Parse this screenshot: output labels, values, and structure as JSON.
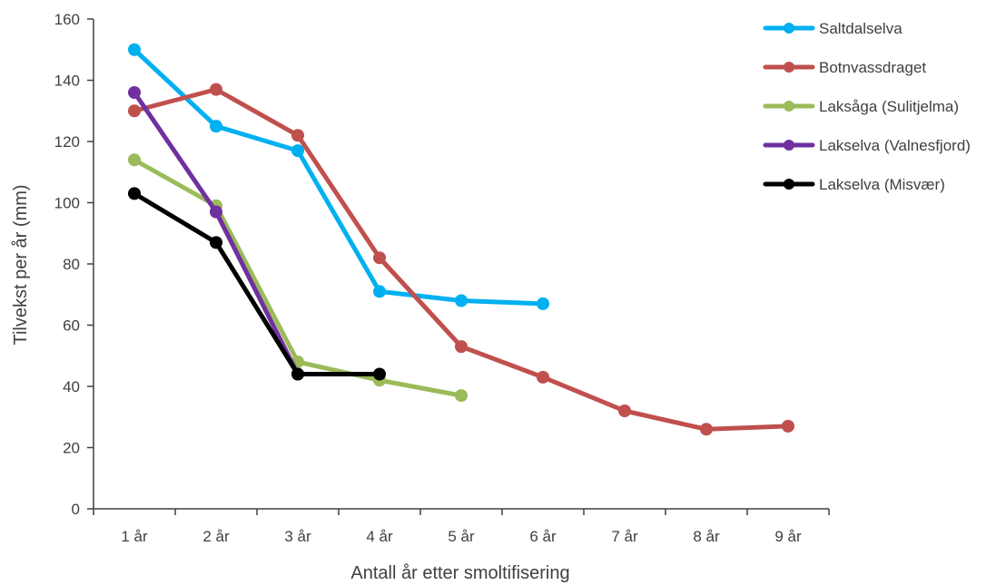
{
  "chart_data": {
    "type": "line",
    "title": "",
    "xlabel": "Antall år etter smoltifisering",
    "ylabel": "Tilvekst per år (mm)",
    "categories": [
      "1 år",
      "2 år",
      "3 år",
      "4 år",
      "5 år",
      "6 år",
      "7 år",
      "8 år",
      "9 år"
    ],
    "ylim": [
      0,
      160
    ],
    "yticks": [
      0,
      20,
      40,
      60,
      80,
      100,
      120,
      140,
      160
    ],
    "grid": false,
    "legend_position": "top-right",
    "series": [
      {
        "name": "Saltdalselva",
        "color": "#00B0F0",
        "values": [
          150,
          125,
          117,
          71,
          68,
          67,
          null,
          null,
          null
        ]
      },
      {
        "name": "Botnvassdraget",
        "color": "#C0504D",
        "values": [
          130,
          137,
          122,
          82,
          53,
          43,
          32,
          26,
          27
        ]
      },
      {
        "name": "Laksåga (Sulitjelma)",
        "color": "#9BBB59",
        "values": [
          114,
          99,
          48,
          42,
          37,
          null,
          null,
          null,
          null
        ]
      },
      {
        "name": "Lakselva (Valnesfjord)",
        "color": "#7030A0",
        "values": [
          136,
          97,
          44,
          null,
          null,
          null,
          null,
          null,
          null
        ]
      },
      {
        "name": "Lakselva (Misvær)",
        "color": "#000000",
        "values": [
          103,
          87,
          44,
          44,
          null,
          null,
          null,
          null,
          null
        ]
      }
    ]
  }
}
